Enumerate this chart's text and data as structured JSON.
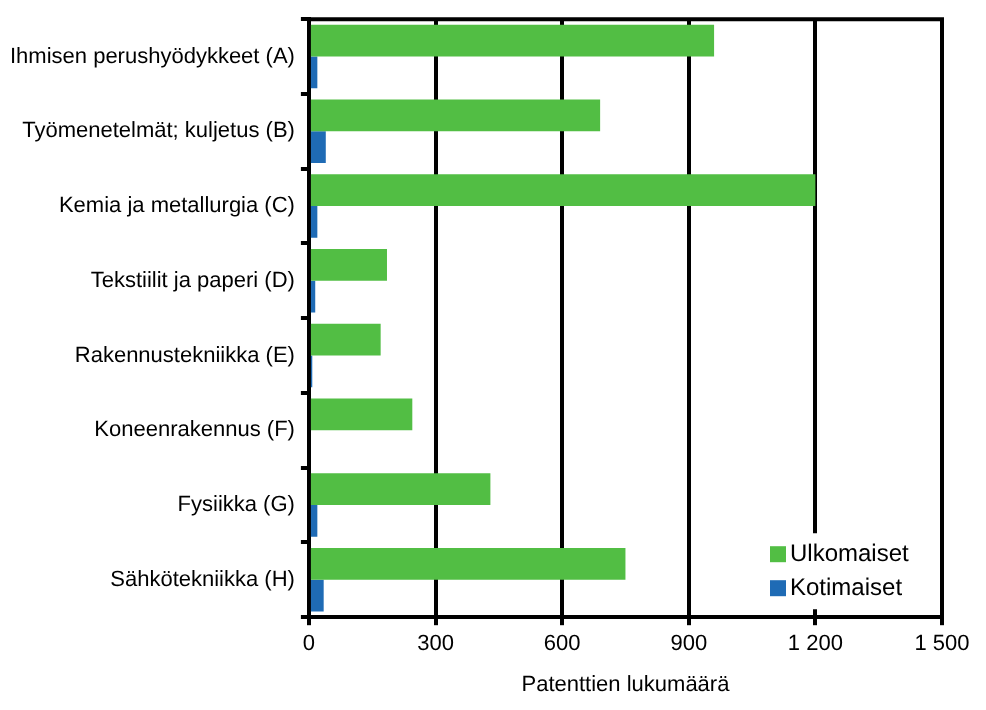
{
  "chart_data": {
    "type": "bar",
    "orientation": "horizontal",
    "xlabel": "Patenttien lukumäärä",
    "categories": [
      "Ihmisen perushyödykkeet (A)",
      "Työmenetelmät; kuljetus (B)",
      "Kemia ja metallurgia (C)",
      "Tekstiilit ja paperi (D)",
      "Rakennustekniikka (E)",
      "Koneenrakennus (F)",
      "Fysiikka (G)",
      "Sähkötekniikka (H)"
    ],
    "series": [
      {
        "name": "Ulkomaiset",
        "color": "#52be44",
        "values": [
          960,
          690,
          1200,
          185,
          170,
          245,
          430,
          750
        ]
      },
      {
        "name": "Kotimaiset",
        "color": "#1f6bb5",
        "values": [
          20,
          40,
          20,
          15,
          8,
          null,
          20,
          35
        ]
      }
    ],
    "xlim": [
      0,
      1500
    ],
    "xticks": [
      0,
      300,
      600,
      900,
      1200,
      1500
    ],
    "grid": "x",
    "legend": "bottom right"
  }
}
